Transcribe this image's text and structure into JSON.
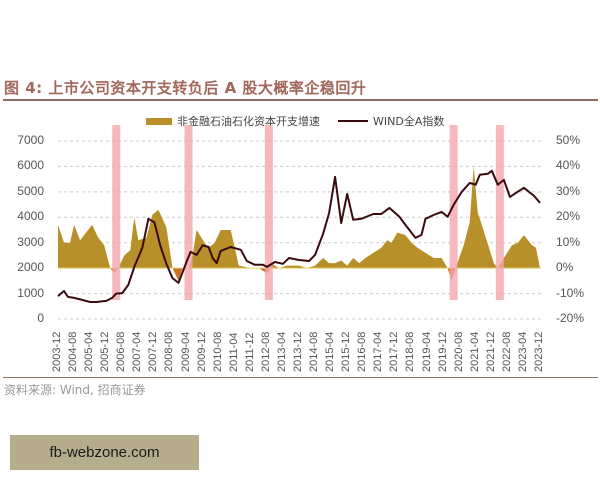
{
  "header": {
    "title": "图 4: 上市公司资本开支转负后 A 股大概率企稳回升"
  },
  "source": {
    "text": "资料来源: Wind, 招商证券"
  },
  "watermark": {
    "text": "fb-webzone.com"
  },
  "colors": {
    "area": "#b8902a",
    "area_negative": "#c8702a",
    "line": "#3a0a0f",
    "shade": "#f4a6ad",
    "title": "#a0675a",
    "grid": "#cccccc"
  },
  "chart_data": {
    "type": "area+line (dual axis)",
    "title": "图 4: 上市公司资本开支转负后 A 股大概率企稳回升",
    "legend": [
      "非金融石油石化资本开支增速",
      "WIND全A指数"
    ],
    "legend_position": "top",
    "grid": true,
    "left_axis": {
      "label": "WIND全A指数",
      "ticks": [
        0,
        1000,
        2000,
        3000,
        4000,
        5000,
        6000,
        7000
      ],
      "ylim": [
        0,
        7000
      ]
    },
    "right_axis": {
      "label": "非金融石油石化资本开支增速",
      "ticks": [
        "-20%",
        "-10%",
        "0%",
        "10%",
        "20%",
        "30%",
        "40%",
        "50%"
      ],
      "ylim": [
        -20,
        50
      ]
    },
    "x_tick_labels": [
      "2003-12",
      "2004-08",
      "2005-04",
      "2005-12",
      "2006-08",
      "2007-04",
      "2007-12",
      "2008-08",
      "2009-04",
      "2009-12",
      "2010-08",
      "2011-04",
      "2011-12",
      "2012-08",
      "2013-04",
      "2013-12",
      "2014-08",
      "2015-04",
      "2015-12",
      "2016-08",
      "2017-04",
      "2017-12",
      "2018-08",
      "2019-04",
      "2019-12",
      "2020-08",
      "2021-04",
      "2021-12",
      "2022-08",
      "2023-04",
      "2023-12"
    ],
    "shaded_periods": [
      {
        "start": "2006-03",
        "end": "2006-07"
      },
      {
        "start": "2009-03",
        "end": "2009-07"
      },
      {
        "start": "2012-07",
        "end": "2012-11"
      },
      {
        "start": "2020-03",
        "end": "2020-06"
      },
      {
        "start": "2022-02",
        "end": "2022-05"
      }
    ],
    "series": [
      {
        "name": "WIND全A指数",
        "axis": "left",
        "type": "line",
        "points": [
          [
            "2003-12",
            900
          ],
          [
            "2004-03",
            1100
          ],
          [
            "2004-05",
            870
          ],
          [
            "2004-08",
            830
          ],
          [
            "2004-12",
            750
          ],
          [
            "2005-04",
            670
          ],
          [
            "2005-07",
            670
          ],
          [
            "2005-12",
            710
          ],
          [
            "2006-03",
            830
          ],
          [
            "2006-05",
            1000
          ],
          [
            "2006-08",
            1020
          ],
          [
            "2006-11",
            1340
          ],
          [
            "2007-02",
            2050
          ],
          [
            "2007-06",
            2800
          ],
          [
            "2007-09",
            3940
          ],
          [
            "2007-12",
            3800
          ],
          [
            "2008-03",
            2870
          ],
          [
            "2008-06",
            2170
          ],
          [
            "2008-09",
            1610
          ],
          [
            "2008-12",
            1420
          ],
          [
            "2009-04",
            2240
          ],
          [
            "2009-06",
            2640
          ],
          [
            "2009-09",
            2520
          ],
          [
            "2009-12",
            2900
          ],
          [
            "2010-03",
            2830
          ],
          [
            "2010-05",
            2400
          ],
          [
            "2010-07",
            2200
          ],
          [
            "2010-09",
            2680
          ],
          [
            "2011-02",
            2830
          ],
          [
            "2011-07",
            2720
          ],
          [
            "2011-10",
            2280
          ],
          [
            "2012-02",
            2130
          ],
          [
            "2012-06",
            2130
          ],
          [
            "2012-08",
            2050
          ],
          [
            "2012-12",
            2240
          ],
          [
            "2013-04",
            2170
          ],
          [
            "2013-07",
            2400
          ],
          [
            "2013-12",
            2320
          ],
          [
            "2014-05",
            2280
          ],
          [
            "2014-08",
            2520
          ],
          [
            "2014-12",
            3350
          ],
          [
            "2015-03",
            4170
          ],
          [
            "2015-06",
            5590
          ],
          [
            "2015-09",
            3770
          ],
          [
            "2015-12",
            4920
          ],
          [
            "2016-03",
            3900
          ],
          [
            "2016-07",
            3940
          ],
          [
            "2017-01",
            4130
          ],
          [
            "2017-05",
            4130
          ],
          [
            "2017-09",
            4370
          ],
          [
            "2018-02",
            4020
          ],
          [
            "2018-05",
            3700
          ],
          [
            "2018-10",
            3190
          ],
          [
            "2019-01",
            3310
          ],
          [
            "2019-03",
            3940
          ],
          [
            "2019-07",
            4090
          ],
          [
            "2019-11",
            4210
          ],
          [
            "2020-02",
            4020
          ],
          [
            "2020-05",
            4490
          ],
          [
            "2020-09",
            5000
          ],
          [
            "2021-01",
            5350
          ],
          [
            "2021-04",
            5280
          ],
          [
            "2021-06",
            5670
          ],
          [
            "2021-10",
            5710
          ],
          [
            "2021-12",
            5830
          ],
          [
            "2022-03",
            5280
          ],
          [
            "2022-06",
            5470
          ],
          [
            "2022-09",
            4800
          ],
          [
            "2022-12",
            4960
          ],
          [
            "2023-04",
            5160
          ],
          [
            "2023-09",
            4840
          ],
          [
            "2023-12",
            4570
          ]
        ]
      },
      {
        "name": "非金融石油石化资本开支增速",
        "axis": "right",
        "type": "area",
        "unit": "%",
        "points": [
          [
            "2003-12",
            17
          ],
          [
            "2004-03",
            10
          ],
          [
            "2004-06",
            10
          ],
          [
            "2004-08",
            17
          ],
          [
            "2004-11",
            11
          ],
          [
            "2005-02",
            14
          ],
          [
            "2005-05",
            17
          ],
          [
            "2005-08",
            12
          ],
          [
            "2005-11",
            9
          ],
          [
            "2006-02",
            0
          ],
          [
            "2006-04",
            -2
          ],
          [
            "2006-06",
            0
          ],
          [
            "2006-09",
            5
          ],
          [
            "2006-12",
            7
          ],
          [
            "2007-02",
            20
          ],
          [
            "2007-04",
            11
          ],
          [
            "2007-08",
            12
          ],
          [
            "2007-11",
            21
          ],
          [
            "2008-02",
            23
          ],
          [
            "2008-06",
            16
          ],
          [
            "2008-09",
            0
          ],
          [
            "2008-12",
            -5
          ],
          [
            "2009-02",
            0
          ],
          [
            "2009-05",
            0
          ],
          [
            "2009-07",
            5
          ],
          [
            "2009-09",
            15
          ],
          [
            "2010-01",
            10
          ],
          [
            "2010-03",
            8
          ],
          [
            "2010-06",
            10
          ],
          [
            "2010-09",
            15
          ],
          [
            "2011-02",
            15
          ],
          [
            "2011-06",
            1
          ],
          [
            "2011-12",
            0
          ],
          [
            "2012-04",
            0
          ],
          [
            "2012-08",
            -2
          ],
          [
            "2012-10",
            2
          ],
          [
            "2013-02",
            0
          ],
          [
            "2013-06",
            1
          ],
          [
            "2013-12",
            1
          ],
          [
            "2014-04",
            0
          ],
          [
            "2014-08",
            1
          ],
          [
            "2014-12",
            4
          ],
          [
            "2015-03",
            2
          ],
          [
            "2015-06",
            2
          ],
          [
            "2015-09",
            3
          ],
          [
            "2015-12",
            1
          ],
          [
            "2016-03",
            4
          ],
          [
            "2016-06",
            2
          ],
          [
            "2016-09",
            4
          ],
          [
            "2017-01",
            6
          ],
          [
            "2017-05",
            8
          ],
          [
            "2017-08",
            11
          ],
          [
            "2017-10",
            10
          ],
          [
            "2018-01",
            14
          ],
          [
            "2018-05",
            13
          ],
          [
            "2018-08",
            10
          ],
          [
            "2018-11",
            8
          ],
          [
            "2019-03",
            6
          ],
          [
            "2019-07",
            4
          ],
          [
            "2019-11",
            4
          ],
          [
            "2020-02",
            0
          ],
          [
            "2020-04",
            -5
          ],
          [
            "2020-06",
            0
          ],
          [
            "2020-10",
            9
          ],
          [
            "2021-01",
            18
          ],
          [
            "2021-03",
            40
          ],
          [
            "2021-05",
            22
          ],
          [
            "2021-09",
            12
          ],
          [
            "2022-01",
            2
          ],
          [
            "2022-03",
            0
          ],
          [
            "2022-06",
            4
          ],
          [
            "2022-10",
            9
          ],
          [
            "2023-01",
            10
          ],
          [
            "2023-04",
            13
          ],
          [
            "2023-08",
            9
          ],
          [
            "2023-10",
            8
          ],
          [
            "2023-12",
            0
          ]
        ]
      }
    ]
  },
  "axes_display": {
    "left_ticks": [
      "7000",
      "6000",
      "5000",
      "4000",
      "3000",
      "2000",
      "1000",
      "0"
    ],
    "right_ticks": [
      "50%",
      "40%",
      "30%",
      "20%",
      "10%",
      "0%",
      "-10%",
      "-20%"
    ]
  },
  "legend": {
    "area_label": "非金融石油石化资本开支增速",
    "line_label": "WIND全A指数"
  }
}
